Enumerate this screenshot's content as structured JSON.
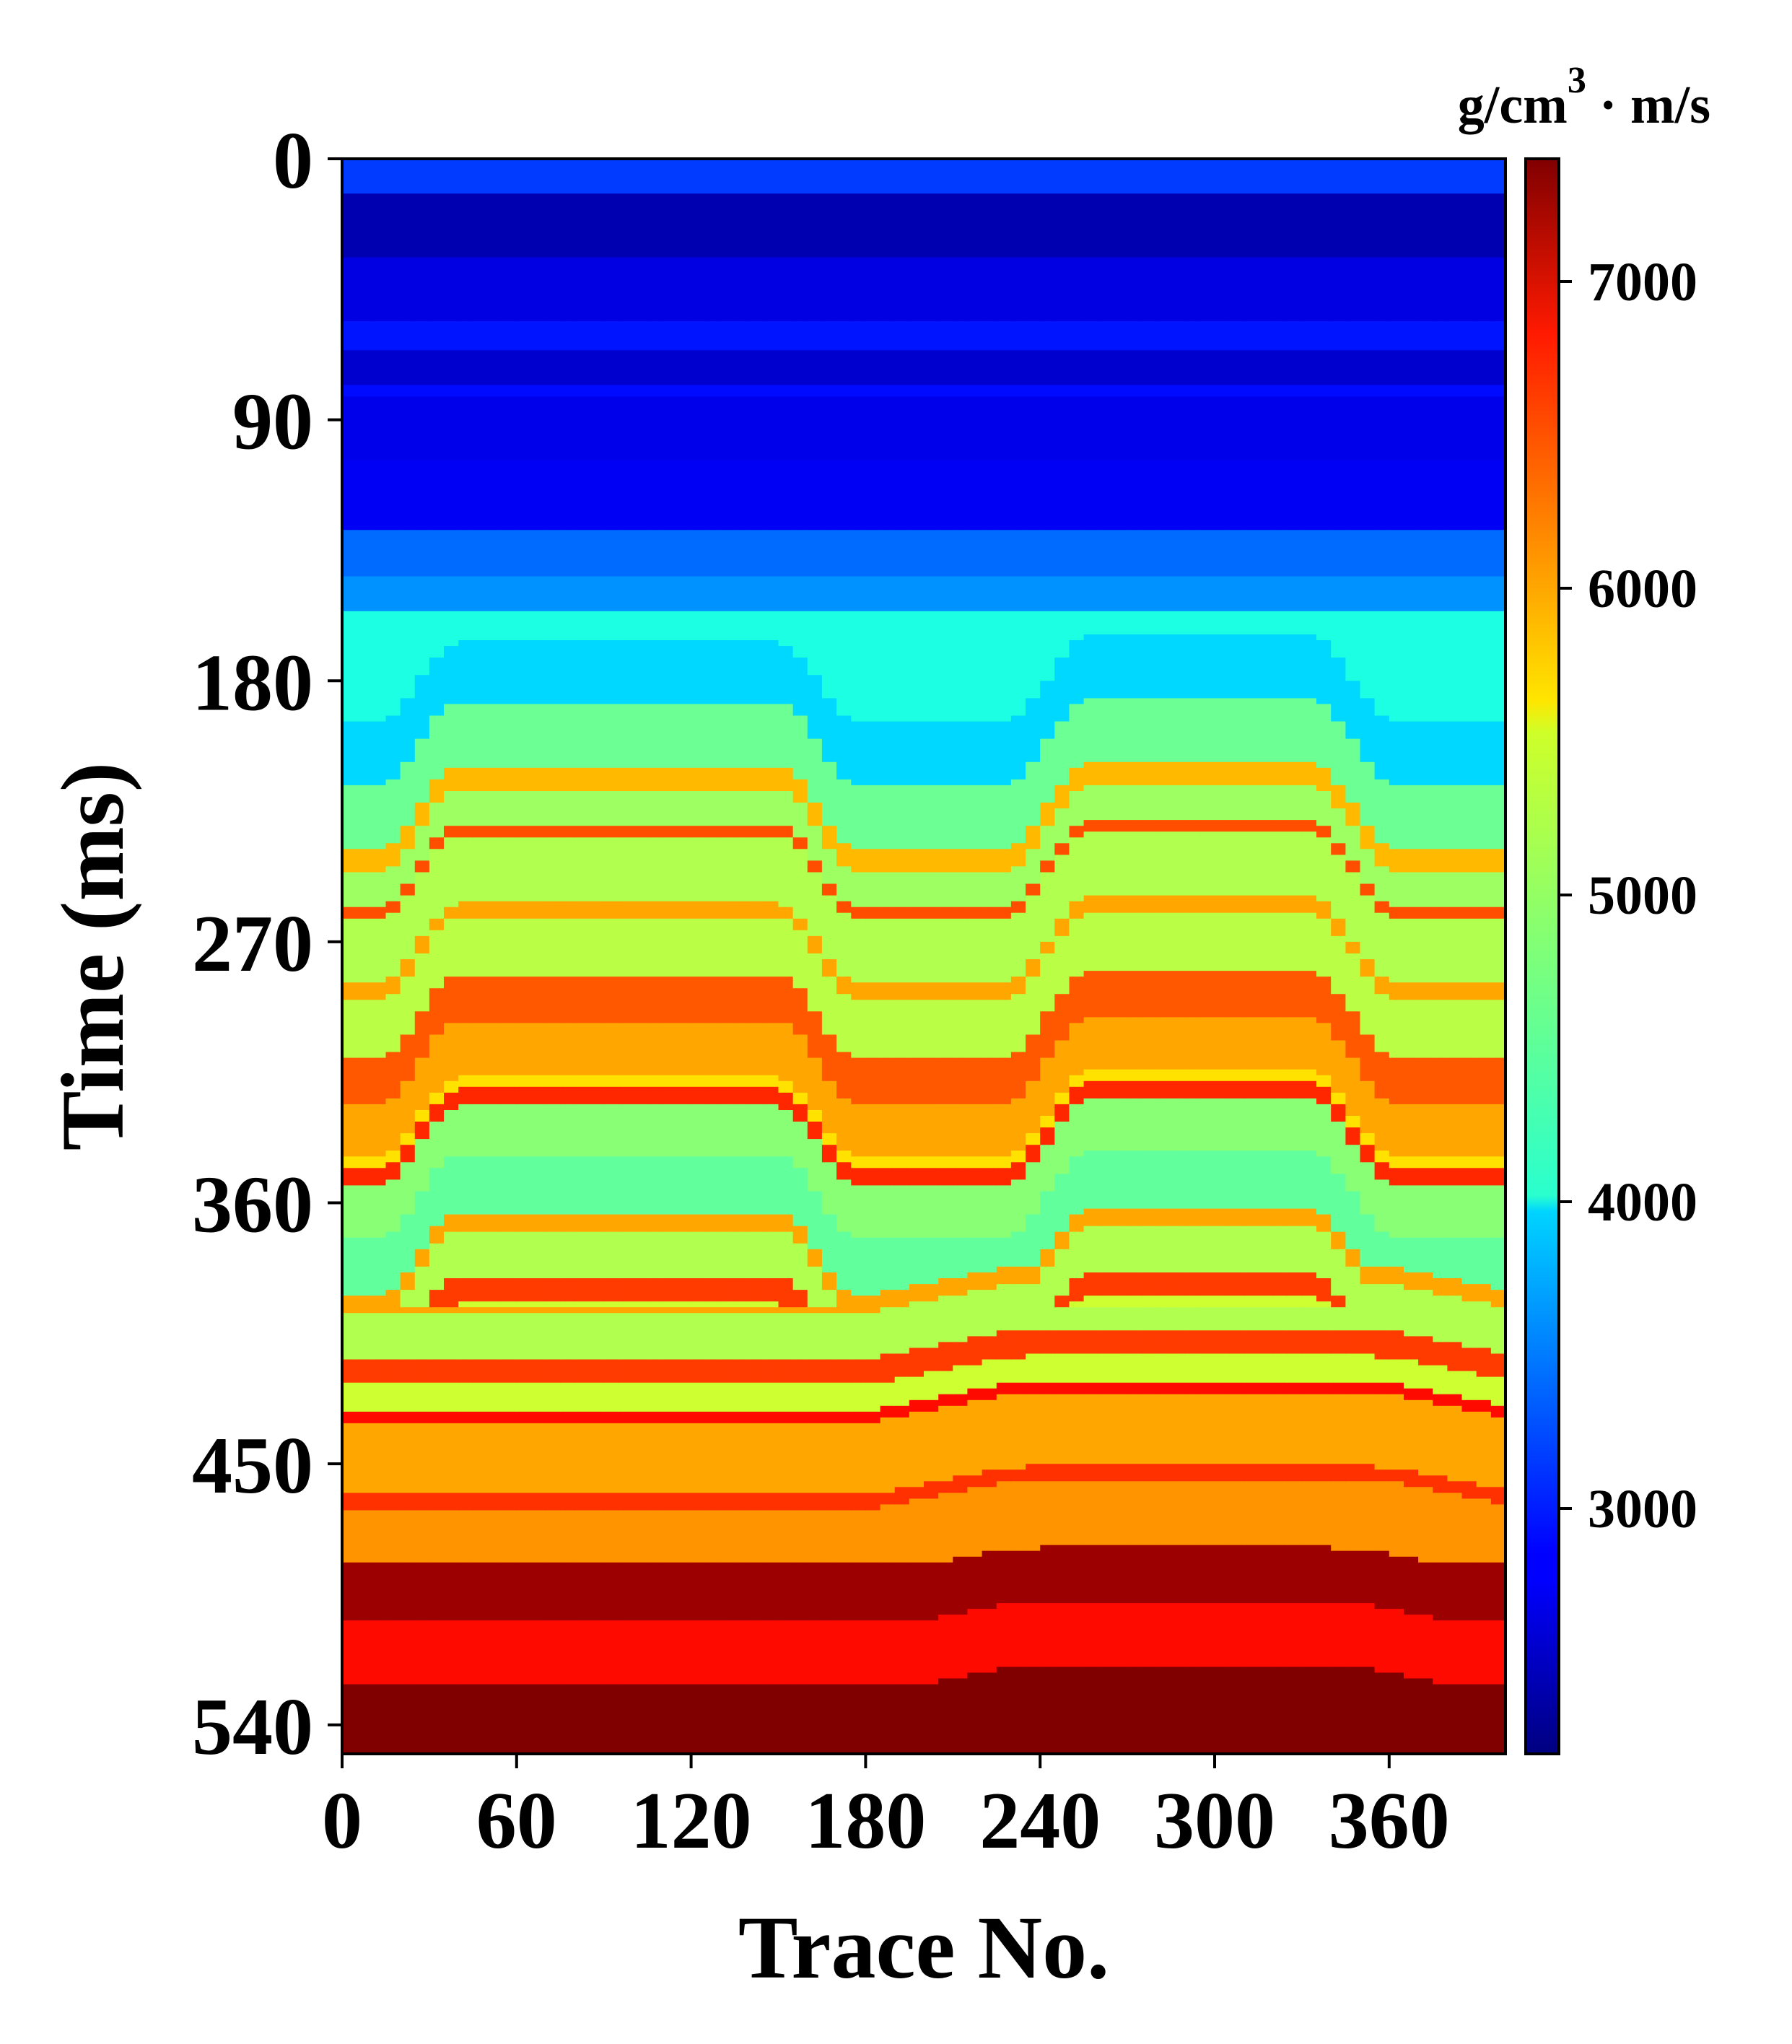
{
  "chart_data": {
    "type": "heatmap",
    "xlabel": "Trace No.",
    "ylabel": "Time (ms)",
    "xlim": [
      0,
      400
    ],
    "ylim": [
      0,
      550
    ],
    "y_inverted": true,
    "xticks": [
      0,
      60,
      120,
      180,
      240,
      300,
      360
    ],
    "yticks": [
      0,
      90,
      180,
      270,
      360,
      450,
      540
    ],
    "colorbar": {
      "unit_base": "g/cm",
      "unit_exp": "3",
      "unit_rest": "· m/s",
      "range": [
        2200,
        7400
      ],
      "ticks": [
        3000,
        4000,
        5000,
        6000,
        7000
      ],
      "colormap": "jet"
    },
    "layers": [
      {
        "top": 0,
        "value": 3150
      },
      {
        "top": 12,
        "value": 2450
      },
      {
        "top": 35,
        "value": 2700
      },
      {
        "top": 57,
        "value": 2950
      },
      {
        "top": 66,
        "value": 2600
      },
      {
        "top": 78,
        "value": 2900
      },
      {
        "top": 83,
        "value": 2750
      },
      {
        "top": 105,
        "value": 2800
      },
      {
        "top": 128,
        "value": 3400
      },
      {
        "top": 145,
        "value": 3600
      },
      {
        "top": 156,
        "value": 4300
      },
      {
        "top": 195,
        "value": 3950
      },
      {
        "top": 216,
        "value": 4700
      },
      {
        "top": 238,
        "value": 5800
      },
      {
        "top": 246,
        "value": 4950
      },
      {
        "top": 258,
        "value": 6350
      },
      {
        "top": 262,
        "value": 5050
      },
      {
        "top": 285,
        "value": 5900
      },
      {
        "top": 290,
        "value": 5100
      },
      {
        "top": 310,
        "value": 6300
      },
      {
        "top": 326,
        "value": 5900
      },
      {
        "top": 345,
        "value": 5600
      },
      {
        "top": 349,
        "value": 6550
      },
      {
        "top": 355,
        "value": 4850
      },
      {
        "top": 372,
        "value": 4650
      },
      {
        "top": 392,
        "value": 5900
      },
      {
        "top": 398,
        "value": 5050
      },
      {
        "top": 414,
        "value": 6450
      },
      {
        "top": 423,
        "value": 5200
      },
      {
        "top": 432,
        "value": 6700
      },
      {
        "top": 436,
        "value": 5900
      },
      {
        "top": 461,
        "value": 6500
      },
      {
        "top": 466,
        "value": 6000
      },
      {
        "top": 485,
        "value": 7250
      },
      {
        "top": 504,
        "value": 6700
      },
      {
        "top": 526,
        "value": 7500
      }
    ],
    "structures": [
      {
        "center": 95,
        "half_width": 55,
        "ramp": 28,
        "lift": 28,
        "depth_from": 160,
        "depth_to": 395
      },
      {
        "center": 295,
        "half_width": 38,
        "ramp": 30,
        "lift": 30,
        "depth_from": 160,
        "depth_to": 395
      },
      {
        "center": 295,
        "half_width": 60,
        "ramp": 60,
        "lift": 10,
        "depth_from": 380,
        "depth_to": 470
      },
      {
        "center": 290,
        "half_width": 50,
        "ramp": 50,
        "lift": 6,
        "depth_from": 470,
        "depth_to": 530
      }
    ]
  }
}
